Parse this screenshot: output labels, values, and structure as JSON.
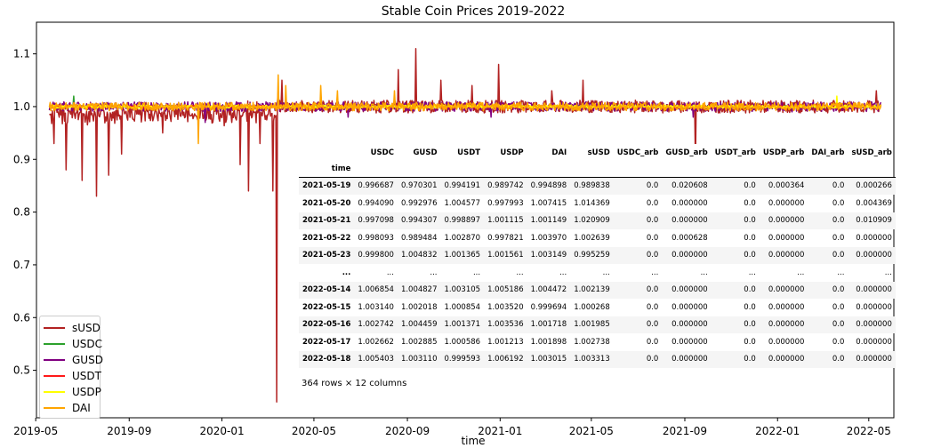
{
  "chart_data": {
    "type": "line",
    "title": "Stable Coin Prices 2019-2022",
    "xlabel": "time",
    "ylabel": "",
    "x_range": [
      "2019-05-02",
      "2022-06-03"
    ],
    "ylim": [
      0.41,
      1.16
    ],
    "x_ticks": [
      "2019-05",
      "2019-09",
      "2020-01",
      "2020-05",
      "2020-09",
      "2021-01",
      "2021-05",
      "2021-09",
      "2022-01",
      "2022-05"
    ],
    "y_ticks": [
      0.5,
      0.6,
      0.7,
      0.8,
      0.9,
      1.0,
      1.1
    ],
    "legend_position": "lower-left",
    "grid": false,
    "series": [
      {
        "name": "sUSD",
        "color": "#b22222",
        "noise": 0.012,
        "spikes": [
          [
            "2019-05-25",
            0.93
          ],
          [
            "2019-06-10",
            0.88
          ],
          [
            "2019-07-01",
            0.86
          ],
          [
            "2019-07-20",
            0.83
          ],
          [
            "2019-08-05",
            0.87
          ],
          [
            "2019-08-22",
            0.91
          ],
          [
            "2019-10-15",
            0.95
          ],
          [
            "2019-12-20",
            0.97
          ],
          [
            "2020-01-25",
            0.89
          ],
          [
            "2020-02-05",
            0.84
          ],
          [
            "2020-02-20",
            0.93
          ],
          [
            "2020-03-08",
            0.84
          ],
          [
            "2020-03-13",
            0.44
          ],
          [
            "2020-03-20",
            1.05
          ],
          [
            "2020-08-20",
            1.07
          ],
          [
            "2020-09-12",
            1.11
          ],
          [
            "2020-10-15",
            1.05
          ],
          [
            "2020-11-25",
            1.04
          ],
          [
            "2020-12-30",
            1.08
          ],
          [
            "2021-03-10",
            1.03
          ],
          [
            "2021-04-20",
            1.05
          ],
          [
            "2021-09-15",
            0.89
          ],
          [
            "2022-05-11",
            1.03
          ]
        ]
      },
      {
        "name": "USDC",
        "color": "#2ca02c",
        "noise": 0.002,
        "spikes": [
          [
            "2019-06-20",
            1.02
          ]
        ]
      },
      {
        "name": "GUSD",
        "color": "#800080",
        "noise": 0.009,
        "spikes": [
          [
            "2019-12-10",
            0.97
          ],
          [
            "2020-03-15",
            1.03
          ],
          [
            "2020-06-15",
            0.98
          ],
          [
            "2020-12-20",
            0.98
          ],
          [
            "2021-09-12",
            0.98
          ],
          [
            "2022-01-20",
            0.99
          ]
        ]
      },
      {
        "name": "USDT",
        "color": "#ff1a1a",
        "noise": 0.002,
        "spikes": []
      },
      {
        "name": "USDP",
        "color": "#ffff00",
        "noise": 0.003,
        "spikes": [
          [
            "2022-03-20",
            1.02
          ]
        ]
      },
      {
        "name": "DAI",
        "color": "#ffa500",
        "noise": 0.008,
        "spikes": [
          [
            "2019-12-01",
            0.93
          ],
          [
            "2020-03-15",
            1.06
          ],
          [
            "2020-03-25",
            1.04
          ],
          [
            "2020-05-10",
            1.04
          ],
          [
            "2020-06-01",
            1.03
          ],
          [
            "2020-08-15",
            1.03
          ]
        ]
      }
    ]
  },
  "dataframe": {
    "columns": [
      "USDC",
      "GUSD",
      "USDT",
      "USDP",
      "DAI",
      "sUSD",
      "USDC_arb",
      "GUSD_arb",
      "USDT_arb",
      "USDP_arb",
      "DAI_arb",
      "sUSD_arb"
    ],
    "index_name": "time",
    "rows": [
      {
        "index": "2021-05-19",
        "values": [
          "0.996687",
          "0.970301",
          "0.994191",
          "0.989742",
          "0.994898",
          "0.989838",
          "0.0",
          "0.020608",
          "0.0",
          "0.000364",
          "0.0",
          "0.000266"
        ]
      },
      {
        "index": "2021-05-20",
        "values": [
          "0.994090",
          "0.992976",
          "1.004577",
          "0.997993",
          "1.007415",
          "1.014369",
          "0.0",
          "0.000000",
          "0.0",
          "0.000000",
          "0.0",
          "0.004369"
        ]
      },
      {
        "index": "2021-05-21",
        "values": [
          "0.997098",
          "0.994307",
          "0.998897",
          "1.001115",
          "1.001149",
          "1.020909",
          "0.0",
          "0.000000",
          "0.0",
          "0.000000",
          "0.0",
          "0.010909"
        ]
      },
      {
        "index": "2021-05-22",
        "values": [
          "0.998093",
          "0.989484",
          "1.002870",
          "0.997821",
          "1.003970",
          "1.002639",
          "0.0",
          "0.000628",
          "0.0",
          "0.000000",
          "0.0",
          "0.000000"
        ]
      },
      {
        "index": "2021-05-23",
        "values": [
          "0.999800",
          "1.004832",
          "1.001365",
          "1.001561",
          "1.003149",
          "0.995259",
          "0.0",
          "0.000000",
          "0.0",
          "0.000000",
          "0.0",
          "0.000000"
        ]
      },
      {
        "index": "...",
        "values": [
          "...",
          "...",
          "...",
          "...",
          "...",
          "...",
          "...",
          "...",
          "...",
          "...",
          "...",
          "..."
        ]
      },
      {
        "index": "2022-05-14",
        "values": [
          "1.006854",
          "1.004827",
          "1.003105",
          "1.005186",
          "1.004472",
          "1.002139",
          "0.0",
          "0.000000",
          "0.0",
          "0.000000",
          "0.0",
          "0.000000"
        ]
      },
      {
        "index": "2022-05-15",
        "values": [
          "1.003140",
          "1.002018",
          "1.000854",
          "1.003520",
          "0.999694",
          "1.000268",
          "0.0",
          "0.000000",
          "0.0",
          "0.000000",
          "0.0",
          "0.000000"
        ]
      },
      {
        "index": "2022-05-16",
        "values": [
          "1.002742",
          "1.004459",
          "1.001371",
          "1.003536",
          "1.001718",
          "1.001985",
          "0.0",
          "0.000000",
          "0.0",
          "0.000000",
          "0.0",
          "0.000000"
        ]
      },
      {
        "index": "2022-05-17",
        "values": [
          "1.002662",
          "1.002885",
          "1.000586",
          "1.001213",
          "1.001898",
          "1.002738",
          "0.0",
          "0.000000",
          "0.0",
          "0.000000",
          "0.0",
          "0.000000"
        ]
      },
      {
        "index": "2022-05-18",
        "values": [
          "1.005403",
          "1.003110",
          "0.999593",
          "1.006192",
          "1.003015",
          "1.003313",
          "0.0",
          "0.000000",
          "0.0",
          "0.000000",
          "0.0",
          "0.000000"
        ]
      }
    ],
    "shape_text": "364 rows × 12 columns"
  }
}
